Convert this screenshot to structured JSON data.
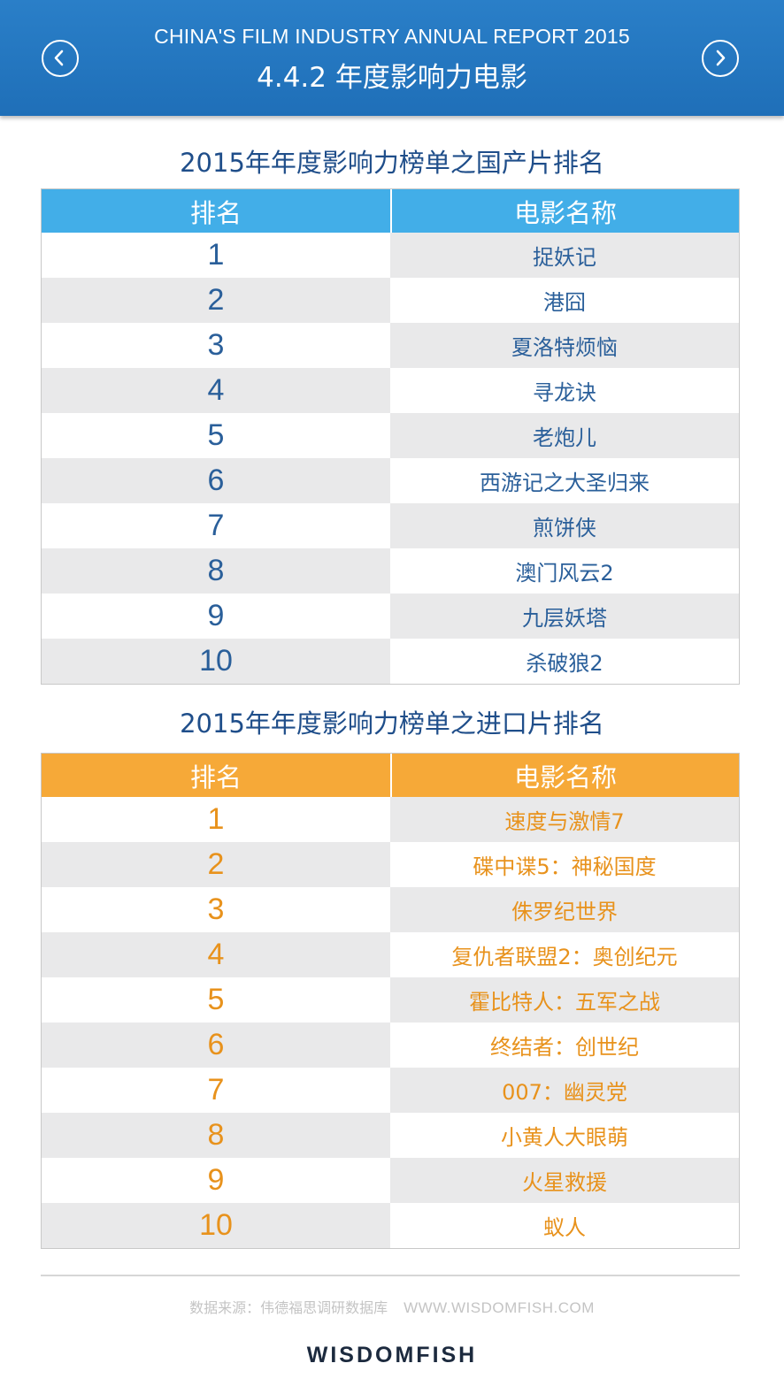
{
  "header": {
    "subtitle": "CHINA'S FILM INDUSTRY ANNUAL REPORT 2015",
    "title": "4.4.2 年度影响力电影"
  },
  "domestic": {
    "title": "2015年年度影响力榜单之国产片排名",
    "col_rank": "排名",
    "col_name": "电影名称",
    "accent": "#42aee8",
    "text_color": "#2a5f9a",
    "rows": [
      {
        "rank": "1",
        "name": "捉妖记"
      },
      {
        "rank": "2",
        "name": "港囧"
      },
      {
        "rank": "3",
        "name": "夏洛特烦恼"
      },
      {
        "rank": "4",
        "name": "寻龙诀"
      },
      {
        "rank": "5",
        "name": "老炮儿"
      },
      {
        "rank": "6",
        "name": "西游记之大圣归来"
      },
      {
        "rank": "7",
        "name": "煎饼侠"
      },
      {
        "rank": "8",
        "name": "澳门风云2"
      },
      {
        "rank": "9",
        "name": "九层妖塔"
      },
      {
        "rank": "10",
        "name": "杀破狼2"
      }
    ]
  },
  "imported": {
    "title": "2015年年度影响力榜单之进口片排名",
    "col_rank": "排名",
    "col_name": "电影名称",
    "accent": "#f6a938",
    "text_color": "#e8921c",
    "rows": [
      {
        "rank": "1",
        "name": "速度与激情7"
      },
      {
        "rank": "2",
        "name": "碟中谍5：神秘国度"
      },
      {
        "rank": "3",
        "name": "侏罗纪世界"
      },
      {
        "rank": "4",
        "name": "复仇者联盟2：奥创纪元"
      },
      {
        "rank": "5",
        "name": "霍比特人：五军之战"
      },
      {
        "rank": "6",
        "name": "终结者：创世纪"
      },
      {
        "rank": "7",
        "name": "007：幽灵党"
      },
      {
        "rank": "8",
        "name": "小黄人大眼萌"
      },
      {
        "rank": "9",
        "name": "火星救援"
      },
      {
        "rank": "10",
        "name": "蚁人"
      }
    ]
  },
  "footer": {
    "source": "数据来源：伟德福思调研数据库",
    "url": "WWW.WISDOMFISH.COM",
    "logo": "WISDOMFISH"
  },
  "icons": {
    "prev": "chevron-left-icon",
    "next": "chevron-right-icon"
  }
}
